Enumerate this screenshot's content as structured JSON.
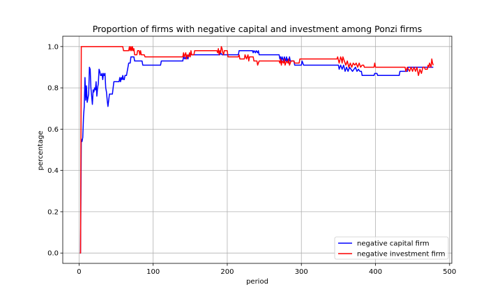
{
  "chart_data": {
    "type": "line",
    "title": "Proportion of firms with negative capital and investment among Ponzi firms",
    "xlabel": "period",
    "ylabel": "percentage",
    "xlim": [
      -22,
      503
    ],
    "ylim": [
      -0.05,
      1.05
    ],
    "xticks": [
      0,
      100,
      200,
      300,
      400,
      500
    ],
    "yticks": [
      0.0,
      0.2,
      0.4,
      0.6,
      0.8,
      1.0
    ],
    "xtick_labels": [
      "0",
      "100",
      "200",
      "300",
      "400",
      "500"
    ],
    "ytick_labels": [
      "0.0",
      "0.2",
      "0.4",
      "0.6",
      "0.8",
      "1.0"
    ],
    "grid": true,
    "legend_position": "bottom-right",
    "series": [
      {
        "name": "negative capital firm",
        "color": "#0000ff",
        "points": [
          [
            1,
            0
          ],
          [
            2,
            0
          ],
          [
            3,
            0.55
          ],
          [
            4,
            0.54
          ],
          [
            5,
            0.56
          ],
          [
            6,
            0.66
          ],
          [
            7,
            0.71
          ],
          [
            8,
            0.85
          ],
          [
            9,
            0.74
          ],
          [
            10,
            0.81
          ],
          [
            11,
            0.73
          ],
          [
            12,
            0.75
          ],
          [
            13,
            0.77
          ],
          [
            14,
            0.9
          ],
          [
            15,
            0.89
          ],
          [
            16,
            0.8
          ],
          [
            17,
            0.76
          ],
          [
            18,
            0.72
          ],
          [
            19,
            0.79
          ],
          [
            20,
            0.78
          ],
          [
            21,
            0.8
          ],
          [
            22,
            0.79
          ],
          [
            23,
            0.83
          ],
          [
            24,
            0.76
          ],
          [
            25,
            0.8
          ],
          [
            26,
            0.82
          ],
          [
            27,
            0.89
          ],
          [
            28,
            0.88
          ],
          [
            29,
            0.86
          ],
          [
            30,
            0.86
          ],
          [
            31,
            0.87
          ],
          [
            32,
            0.84
          ],
          [
            33,
            0.87
          ],
          [
            34,
            0.86
          ],
          [
            35,
            0.87
          ],
          [
            36,
            0.8
          ],
          [
            37,
            0.78
          ],
          [
            38,
            0.74
          ],
          [
            39,
            0.71
          ],
          [
            40,
            0.74
          ],
          [
            41,
            0.77
          ],
          [
            45,
            0.77
          ],
          [
            46,
            0.8
          ],
          [
            47,
            0.83
          ],
          [
            54,
            0.83
          ],
          [
            55,
            0.85
          ],
          [
            56,
            0.83
          ],
          [
            57,
            0.85
          ],
          [
            58,
            0.84
          ],
          [
            59,
            0.86
          ],
          [
            60,
            0.84
          ],
          [
            61,
            0.84
          ],
          [
            62,
            0.86
          ],
          [
            64,
            0.86
          ],
          [
            65,
            0.88
          ],
          [
            66,
            0.9
          ],
          [
            67,
            0.92
          ],
          [
            69,
            0.92
          ],
          [
            70,
            0.95
          ],
          [
            74,
            0.95
          ],
          [
            75,
            0.93
          ],
          [
            85,
            0.93
          ],
          [
            86,
            0.91
          ],
          [
            110,
            0.91
          ],
          [
            111,
            0.93
          ],
          [
            140,
            0.93
          ],
          [
            141,
            0.95
          ],
          [
            143,
            0.94
          ],
          [
            144,
            0.95
          ],
          [
            145,
            0.94
          ],
          [
            146,
            0.95
          ],
          [
            147,
            0.94
          ],
          [
            148,
            0.96
          ],
          [
            190,
            0.96
          ],
          [
            191,
            0.97
          ],
          [
            193,
            0.96
          ],
          [
            215,
            0.96
          ],
          [
            216,
            0.98
          ],
          [
            234,
            0.98
          ],
          [
            235,
            0.97
          ],
          [
            236,
            0.98
          ],
          [
            238,
            0.97
          ],
          [
            239,
            0.98
          ],
          [
            241,
            0.97
          ],
          [
            242,
            0.98
          ],
          [
            243,
            0.96
          ],
          [
            270,
            0.96
          ],
          [
            271,
            0.94
          ],
          [
            272,
            0.95
          ],
          [
            273,
            0.93
          ],
          [
            274,
            0.95
          ],
          [
            275,
            0.94
          ],
          [
            276,
            0.93
          ],
          [
            277,
            0.95
          ],
          [
            278,
            0.94
          ],
          [
            279,
            0.93
          ],
          [
            280,
            0.95
          ],
          [
            281,
            0.93
          ],
          [
            282,
            0.94
          ],
          [
            283,
            0.92
          ],
          [
            284,
            0.95
          ],
          [
            285,
            0.93
          ],
          [
            290,
            0.93
          ],
          [
            291,
            0.91
          ],
          [
            300,
            0.91
          ],
          [
            301,
            0.93
          ],
          [
            303,
            0.91
          ],
          [
            350,
            0.91
          ],
          [
            351,
            0.89
          ],
          [
            353,
            0.91
          ],
          [
            355,
            0.89
          ],
          [
            357,
            0.91
          ],
          [
            359,
            0.88
          ],
          [
            361,
            0.9
          ],
          [
            363,
            0.88
          ],
          [
            365,
            0.9
          ],
          [
            367,
            0.89
          ],
          [
            369,
            0.88
          ],
          [
            371,
            0.89
          ],
          [
            373,
            0.9
          ],
          [
            375,
            0.88
          ],
          [
            377,
            0.89
          ],
          [
            379,
            0.88
          ],
          [
            381,
            0.88
          ],
          [
            382,
            0.86
          ],
          [
            398,
            0.86
          ],
          [
            399,
            0.87
          ],
          [
            402,
            0.87
          ],
          [
            403,
            0.86
          ],
          [
            432,
            0.86
          ],
          [
            433,
            0.88
          ],
          [
            443,
            0.88
          ],
          [
            444,
            0.9
          ],
          [
            478,
            0.9
          ]
        ]
      },
      {
        "name": "negative investment firm",
        "color": "#ff0000",
        "points": [
          [
            1,
            0
          ],
          [
            2,
            0
          ],
          [
            3,
            1.0
          ],
          [
            59,
            1.0
          ],
          [
            60,
            0.98
          ],
          [
            67,
            0.98
          ],
          [
            68,
            1.0
          ],
          [
            69,
            0.98
          ],
          [
            70,
            1.0
          ],
          [
            71,
            0.98
          ],
          [
            72,
            1.0
          ],
          [
            73,
            0.98
          ],
          [
            74,
            0.99
          ],
          [
            75,
            0.96
          ],
          [
            78,
            0.96
          ],
          [
            79,
            0.98
          ],
          [
            81,
            0.98
          ],
          [
            82,
            0.96
          ],
          [
            83,
            0.98
          ],
          [
            84,
            0.96
          ],
          [
            88,
            0.96
          ],
          [
            89,
            0.95
          ],
          [
            140,
            0.95
          ],
          [
            141,
            0.97
          ],
          [
            142,
            0.95
          ],
          [
            143,
            0.96
          ],
          [
            144,
            0.97
          ],
          [
            145,
            0.94
          ],
          [
            146,
            0.96
          ],
          [
            148,
            0.95
          ],
          [
            149,
            0.97
          ],
          [
            150,
            0.95
          ],
          [
            151,
            0.98
          ],
          [
            152,
            0.96
          ],
          [
            155,
            0.96
          ],
          [
            156,
            0.98
          ],
          [
            186,
            0.98
          ],
          [
            187,
            0.97
          ],
          [
            188,
            0.99
          ],
          [
            189,
            0.96
          ],
          [
            190,
            0.98
          ],
          [
            191,
            0.97
          ],
          [
            192,
            1.0
          ],
          [
            193,
            0.99
          ],
          [
            194,
            0.97
          ],
          [
            195,
            0.96
          ],
          [
            196,
            0.98
          ],
          [
            200,
            0.98
          ],
          [
            201,
            0.95
          ],
          [
            215,
            0.95
          ],
          [
            216,
            0.96
          ],
          [
            217,
            0.94
          ],
          [
            223,
            0.94
          ],
          [
            224,
            0.96
          ],
          [
            226,
            0.94
          ],
          [
            228,
            0.96
          ],
          [
            229,
            0.93
          ],
          [
            230,
            0.95
          ],
          [
            235,
            0.95
          ],
          [
            236,
            0.93
          ],
          [
            240,
            0.93
          ],
          [
            241,
            0.91
          ],
          [
            243,
            0.93
          ],
          [
            270,
            0.93
          ],
          [
            271,
            0.92
          ],
          [
            272,
            0.94
          ],
          [
            273,
            0.91
          ],
          [
            274,
            0.93
          ],
          [
            276,
            0.92
          ],
          [
            277,
            0.94
          ],
          [
            278,
            0.91
          ],
          [
            280,
            0.93
          ],
          [
            282,
            0.92
          ],
          [
            283,
            0.94
          ],
          [
            284,
            0.91
          ],
          [
            286,
            0.93
          ],
          [
            290,
            0.93
          ],
          [
            291,
            0.92
          ],
          [
            297,
            0.92
          ],
          [
            298,
            0.94
          ],
          [
            348,
            0.94
          ],
          [
            349,
            0.95
          ],
          [
            351,
            0.92
          ],
          [
            353,
            0.95
          ],
          [
            354,
            0.94
          ],
          [
            355,
            0.92
          ],
          [
            356,
            0.95
          ],
          [
            358,
            0.93
          ],
          [
            360,
            0.91
          ],
          [
            362,
            0.93
          ],
          [
            364,
            0.9
          ],
          [
            366,
            0.92
          ],
          [
            368,
            0.9
          ],
          [
            370,
            0.92
          ],
          [
            372,
            0.91
          ],
          [
            374,
            0.92
          ],
          [
            376,
            0.9
          ],
          [
            378,
            0.92
          ],
          [
            380,
            0.9
          ],
          [
            382,
            0.91
          ],
          [
            384,
            0.91
          ],
          [
            385,
            0.9
          ],
          [
            398,
            0.9
          ],
          [
            399,
            0.92
          ],
          [
            400,
            0.9
          ],
          [
            440,
            0.9
          ],
          [
            441,
            0.88
          ],
          [
            443,
            0.9
          ],
          [
            446,
            0.88
          ],
          [
            448,
            0.9
          ],
          [
            450,
            0.88
          ],
          [
            452,
            0.9
          ],
          [
            454,
            0.88
          ],
          [
            456,
            0.9
          ],
          [
            458,
            0.86
          ],
          [
            460,
            0.89
          ],
          [
            462,
            0.87
          ],
          [
            464,
            0.9
          ],
          [
            466,
            0.9
          ],
          [
            467,
            0.89
          ],
          [
            470,
            0.89
          ],
          [
            471,
            0.91
          ],
          [
            472,
            0.9
          ],
          [
            473,
            0.92
          ],
          [
            474,
            0.91
          ],
          [
            475,
            0.9
          ],
          [
            476,
            0.94
          ],
          [
            477,
            0.92
          ],
          [
            478,
            0.91
          ]
        ]
      }
    ]
  }
}
